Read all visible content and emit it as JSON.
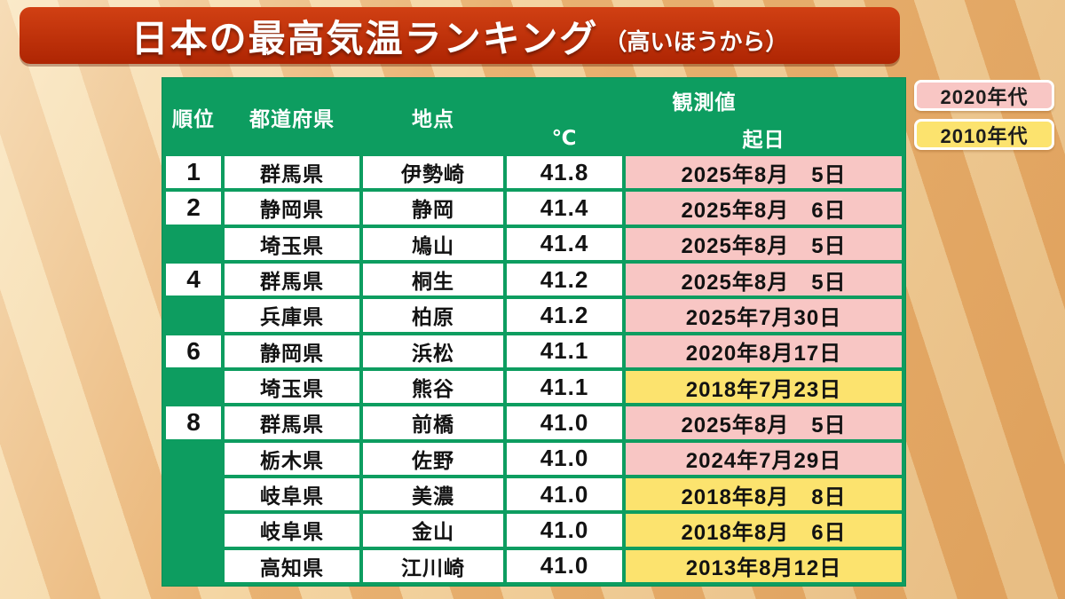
{
  "title": {
    "main": "日本の最高気温ランキング",
    "sub": "（高いほうから）"
  },
  "legend": [
    {
      "label": "2020年代",
      "decade": "2020s",
      "color": "#f8c6c4"
    },
    {
      "label": "2010年代",
      "decade": "2010s",
      "color": "#fce36e"
    }
  ],
  "colors": {
    "2020s": "#f8c6c4",
    "2010s": "#fce36e",
    "table_green": "#0d9d60",
    "banner_red": "#b82a06",
    "background_orange": "#e9b272"
  },
  "chart_data": {
    "type": "table",
    "title": "日本の最高気温ランキング（高いほうから）",
    "headers": {
      "rank": "順位",
      "prefecture": "都道府県",
      "location": "地点",
      "observed": "観測値",
      "temp": "℃",
      "date": "起日"
    },
    "rows": [
      {
        "rank": "1",
        "prefecture": "群馬県",
        "location": "伊勢崎",
        "temp": "41.8",
        "date": "2025年8月　5日",
        "decade": "2020s"
      },
      {
        "rank": "2",
        "prefecture": "静岡県",
        "location": "静岡",
        "temp": "41.4",
        "date": "2025年8月　6日",
        "decade": "2020s"
      },
      {
        "rank": "",
        "prefecture": "埼玉県",
        "location": "鳩山",
        "temp": "41.4",
        "date": "2025年8月　5日",
        "decade": "2020s"
      },
      {
        "rank": "4",
        "prefecture": "群馬県",
        "location": "桐生",
        "temp": "41.2",
        "date": "2025年8月　5日",
        "decade": "2020s"
      },
      {
        "rank": "",
        "prefecture": "兵庫県",
        "location": "柏原",
        "temp": "41.2",
        "date": "2025年7月30日",
        "decade": "2020s"
      },
      {
        "rank": "6",
        "prefecture": "静岡県",
        "location": "浜松",
        "temp": "41.1",
        "date": "2020年8月17日",
        "decade": "2020s"
      },
      {
        "rank": "",
        "prefecture": "埼玉県",
        "location": "熊谷",
        "temp": "41.1",
        "date": "2018年7月23日",
        "decade": "2010s"
      },
      {
        "rank": "8",
        "prefecture": "群馬県",
        "location": "前橋",
        "temp": "41.0",
        "date": "2025年8月　5日",
        "decade": "2020s"
      },
      {
        "rank": "",
        "prefecture": "栃木県",
        "location": "佐野",
        "temp": "41.0",
        "date": "2024年7月29日",
        "decade": "2020s"
      },
      {
        "rank": "",
        "prefecture": "岐阜県",
        "location": "美濃",
        "temp": "41.0",
        "date": "2018年8月　8日",
        "decade": "2010s"
      },
      {
        "rank": "",
        "prefecture": "岐阜県",
        "location": "金山",
        "temp": "41.0",
        "date": "2018年8月　6日",
        "decade": "2010s"
      },
      {
        "rank": "",
        "prefecture": "高知県",
        "location": "江川崎",
        "temp": "41.0",
        "date": "2013年8月12日",
        "decade": "2010s"
      }
    ]
  }
}
